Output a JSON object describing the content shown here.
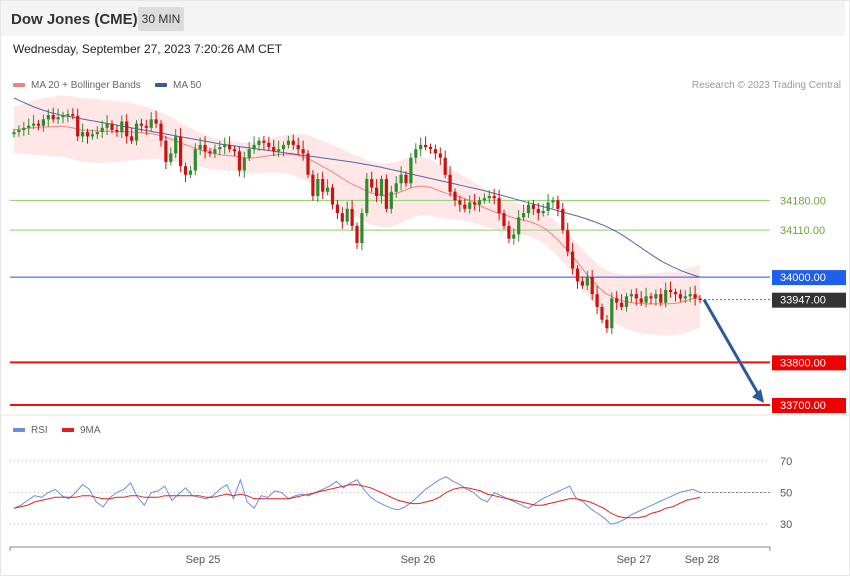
{
  "header": {
    "title": "Dow Jones (CME)",
    "timeframe": "30 MIN"
  },
  "timestamp": "Wednesday, September 27, 2023 7:20:26 AM CET",
  "legend": {
    "ma20": "MA 20 + Bollinger Bands",
    "ma50": "MA 50",
    "credit": "Research © 2023 Trading Central"
  },
  "rsi_legend": {
    "rsi": "RSI",
    "ma9": "9MA"
  },
  "colors": {
    "bollinger_fill": "#ffe3e3",
    "ma20": "#f08080",
    "ma50": "#5566aa",
    "up": "#2e8b2e",
    "down": "#cc1111",
    "support": "#ee1111",
    "resistance": "#8ccf6a",
    "pivot": "#2255dd",
    "arrow": "#2a5a9a",
    "rsi": "#6a8ee0",
    "rsi_ma": "#e02020"
  },
  "chart_data": [
    {
      "type": "candlestick",
      "title": "Dow Jones (CME)",
      "interval": "30 MIN",
      "x_tick_labels": [
        "Sep 25",
        "Sep 26",
        "Sep 27",
        "Sep 28"
      ],
      "ylim": [
        33700,
        34400
      ],
      "ohlc_close": [
        34340,
        34345,
        34350,
        34355,
        34360,
        34355,
        34370,
        34380,
        34370,
        34375,
        34380,
        34382,
        34378,
        34330,
        34340,
        34330,
        34335,
        34340,
        34350,
        34360,
        34345,
        34340,
        34365,
        34330,
        34320,
        34360,
        34355,
        34350,
        34370,
        34360,
        34320,
        34270,
        34290,
        34330,
        34260,
        34240,
        34250,
        34300,
        34310,
        34295,
        34290,
        34300,
        34305,
        34310,
        34300,
        34295,
        34250,
        34280,
        34300,
        34310,
        34320,
        34315,
        34305,
        34295,
        34300,
        34310,
        34320,
        34310,
        34300,
        34290,
        34240,
        34190,
        34230,
        34200,
        34210,
        34170,
        34150,
        34130,
        34160,
        34120,
        34080,
        34150,
        34230,
        34210,
        34190,
        34230,
        34160,
        34200,
        34220,
        34240,
        34220,
        34280,
        34300,
        34310,
        34305,
        34300,
        34290,
        34280,
        34240,
        34200,
        34180,
        34170,
        34160,
        34175,
        34170,
        34180,
        34185,
        34190,
        34185,
        34150,
        34120,
        34090,
        34100,
        34140,
        34150,
        34170,
        34160,
        34150,
        34155,
        34175,
        34180,
        34160,
        34110,
        34060,
        34020,
        33990,
        33980,
        34000,
        33960,
        33930,
        33900,
        33880,
        33950,
        33940,
        33930,
        33955,
        33960,
        33950,
        33940,
        33955,
        33950,
        33960,
        33940,
        33970,
        33965,
        33960,
        33950,
        33955,
        33960,
        33950,
        33947
      ],
      "ma20": [
        34345,
        34347,
        34349,
        34350,
        34352,
        34352,
        34353,
        34354,
        34352,
        34349,
        34345,
        34344,
        34343,
        34342,
        34342,
        34341,
        34341,
        34341,
        34340,
        34339,
        34337,
        34335,
        34330,
        34326,
        34320,
        34313,
        34308,
        34301,
        34297,
        34292,
        34289,
        34286,
        34285,
        34283,
        34280,
        34279,
        34280,
        34282,
        34285,
        34287,
        34288,
        34288,
        34286,
        34282,
        34276,
        34267,
        34258,
        34250,
        34240,
        34230,
        34220,
        34213,
        34205,
        34198,
        34194,
        34191,
        34193,
        34197,
        34203,
        34209,
        34213,
        34213,
        34210,
        34204,
        34198,
        34193,
        34190,
        34184,
        34178,
        34170,
        34162,
        34156,
        34150,
        34146,
        34140,
        34136,
        34133,
        34128,
        34122,
        34113,
        34100,
        34085,
        34068,
        34050,
        34030,
        34010,
        33992,
        33975,
        33962,
        33953,
        33947,
        33942,
        33940,
        33938,
        33937,
        33937,
        33937,
        33937,
        33938,
        33940,
        33945,
        33950,
        33955
      ],
      "ma50": [
        34420,
        34410,
        34400,
        34392,
        34385,
        34380,
        34376,
        34372,
        34368,
        34364,
        34360,
        34356,
        34352,
        34348,
        34344,
        34340,
        34336,
        34332,
        34328,
        34324,
        34320,
        34316,
        34312,
        34309,
        34306,
        34303,
        34300,
        34297,
        34294,
        34291,
        34288,
        34285,
        34282,
        34279,
        34276,
        34273,
        34270,
        34266,
        34262,
        34258,
        34253,
        34248,
        34243,
        34238,
        34233,
        34228,
        34223,
        34218,
        34213,
        34208,
        34203,
        34197,
        34191,
        34185,
        34179,
        34173,
        34167,
        34161,
        34155,
        34149,
        34143,
        34136,
        34128,
        34119,
        34108,
        34095,
        34080,
        34065,
        34050,
        34036,
        34025,
        34015,
        34007,
        34000
      ],
      "levels": [
        {
          "label": "34180.00",
          "value": 34180,
          "role": "resistance"
        },
        {
          "label": "34110.00",
          "value": 34110,
          "role": "resistance"
        },
        {
          "label": "34000.00",
          "value": 34000,
          "role": "pivot"
        },
        {
          "label": "33947.00",
          "value": 33947,
          "role": "last_price"
        },
        {
          "label": "33800.00",
          "value": 33800,
          "role": "support"
        },
        {
          "label": "33700.00",
          "value": 33700,
          "role": "support"
        }
      ]
    },
    {
      "type": "line",
      "series": [
        {
          "name": "RSI",
          "values": [
            40,
            42,
            45,
            48,
            47,
            50,
            52,
            48,
            46,
            50,
            55,
            52,
            44,
            41,
            47,
            50,
            52,
            56,
            47,
            42,
            50,
            51,
            54,
            45,
            49,
            53,
            48,
            47,
            46,
            48,
            52,
            55,
            46,
            58,
            44,
            40,
            48,
            47,
            51,
            50,
            46,
            48,
            49,
            48,
            50,
            52,
            54,
            57,
            53,
            56,
            58,
            52,
            47,
            44,
            42,
            40,
            39,
            41,
            44,
            48,
            52,
            55,
            58,
            60,
            57,
            55,
            52,
            50,
            46,
            44,
            50,
            48,
            46,
            44,
            42,
            40,
            43,
            46,
            48,
            50,
            52,
            54,
            46,
            44,
            40,
            37,
            34,
            30,
            31,
            33,
            36,
            38,
            40,
            42,
            44,
            46,
            48,
            50,
            51,
            52,
            50
          ],
          "note": ""
        },
        {
          "name": "9MA",
          "values": [
            40,
            41,
            42,
            44,
            45,
            46,
            47,
            47,
            47,
            47,
            48,
            48,
            47,
            46,
            46,
            47,
            47,
            48,
            48,
            47,
            47,
            47,
            48,
            48,
            48,
            48,
            48,
            48,
            47,
            47,
            48,
            49,
            48,
            49,
            48,
            46,
            46,
            46,
            46,
            46,
            46,
            47,
            48,
            49,
            50,
            51,
            52,
            53,
            54,
            55,
            55,
            54,
            53,
            51,
            49,
            47,
            45,
            44,
            43,
            43,
            44,
            45,
            47,
            50,
            52,
            53,
            53,
            52,
            51,
            49,
            48,
            47,
            46,
            45,
            44,
            43,
            42,
            42,
            43,
            44,
            45,
            46,
            46,
            45,
            44,
            42,
            40,
            37,
            35,
            34,
            34,
            34,
            35,
            37,
            38,
            40,
            41,
            43,
            45,
            46,
            47
          ],
          "note": ""
        }
      ],
      "y_tick_labels": [
        "70",
        "50",
        "30"
      ],
      "ylim": [
        20,
        80
      ]
    }
  ]
}
